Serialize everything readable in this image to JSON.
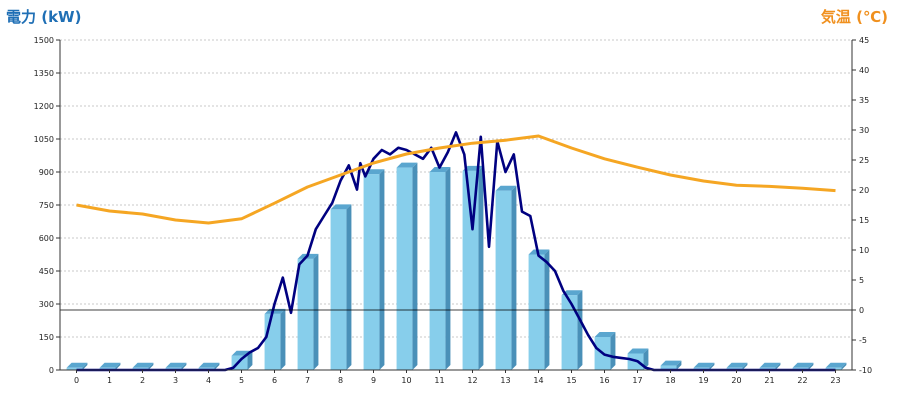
{
  "chart_data": {
    "type": "bar",
    "title_left": "電力 (kW)",
    "title_right": "気温 (℃)",
    "categories": [
      "0",
      "1",
      "2",
      "3",
      "4",
      "5",
      "6",
      "7",
      "8",
      "9",
      "10",
      "11",
      "12",
      "13",
      "14",
      "15",
      "16",
      "17",
      "18",
      "19",
      "20",
      "21",
      "22",
      "23"
    ],
    "y_left": {
      "min": 0,
      "max": 1500,
      "ticks": [
        0,
        150,
        300,
        450,
        600,
        750,
        900,
        1050,
        1200,
        1350,
        1500
      ]
    },
    "y_right": {
      "min": -10,
      "max": 45,
      "ticks": [
        -10,
        -5,
        0,
        5,
        10,
        15,
        20,
        25,
        30,
        35,
        40,
        45
      ]
    },
    "reference_line_right": 0,
    "series": [
      {
        "kind": "bar",
        "color": "#87ceeb",
        "values": [
          10,
          10,
          10,
          10,
          10,
          65,
          255,
          505,
          730,
          890,
          920,
          900,
          905,
          815,
          525,
          340,
          150,
          75,
          20,
          10,
          10,
          10,
          10,
          10
        ]
      },
      {
        "kind": "line",
        "axis": "left",
        "color": "#000080",
        "x": [
          0,
          0.5,
          1,
          1.5,
          2,
          2.5,
          3,
          3.5,
          4,
          4.5,
          4.75,
          5,
          5.25,
          5.5,
          5.75,
          6,
          6.25,
          6.5,
          6.75,
          7,
          7.25,
          7.5,
          7.75,
          8,
          8.25,
          8.5,
          8.6,
          8.75,
          9,
          9.25,
          9.5,
          9.75,
          10,
          10.25,
          10.5,
          10.75,
          11,
          11.25,
          11.5,
          11.75,
          12,
          12.25,
          12.5,
          12.75,
          13,
          13.25,
          13.5,
          13.75,
          14,
          14.25,
          14.5,
          14.75,
          15,
          15.25,
          15.5,
          15.75,
          16,
          16.25,
          16.5,
          16.75,
          17,
          17.25,
          17.5,
          17.75,
          18,
          18.5,
          19,
          20,
          21,
          22,
          23
        ],
        "values": [
          0,
          0,
          0,
          0,
          0,
          0,
          0,
          0,
          0,
          0,
          10,
          50,
          80,
          100,
          150,
          300,
          420,
          260,
          480,
          520,
          640,
          700,
          760,
          860,
          930,
          820,
          940,
          880,
          960,
          1000,
          980,
          1010,
          1000,
          980,
          960,
          1010,
          920,
          990,
          1080,
          980,
          640,
          1060,
          560,
          1040,
          900,
          980,
          720,
          700,
          520,
          490,
          450,
          360,
          300,
          230,
          160,
          100,
          70,
          60,
          55,
          50,
          40,
          10,
          0,
          0,
          0,
          0,
          0,
          0,
          0,
          0,
          0
        ]
      },
      {
        "kind": "line",
        "axis": "right",
        "color": "#f5a623",
        "x": [
          0,
          1,
          2,
          3,
          4,
          5,
          6,
          7,
          8,
          9,
          10,
          11,
          12,
          13,
          14,
          15,
          16,
          17,
          18,
          19,
          20,
          21,
          22,
          23
        ],
        "values": [
          17.5,
          16.5,
          16.0,
          15.0,
          14.5,
          15.2,
          17.8,
          20.5,
          22.5,
          24.5,
          26.0,
          27.0,
          27.8,
          28.3,
          29.0,
          27.0,
          25.2,
          23.8,
          22.5,
          21.5,
          20.8,
          20.6,
          20.3,
          19.9
        ]
      }
    ],
    "grid": true
  }
}
